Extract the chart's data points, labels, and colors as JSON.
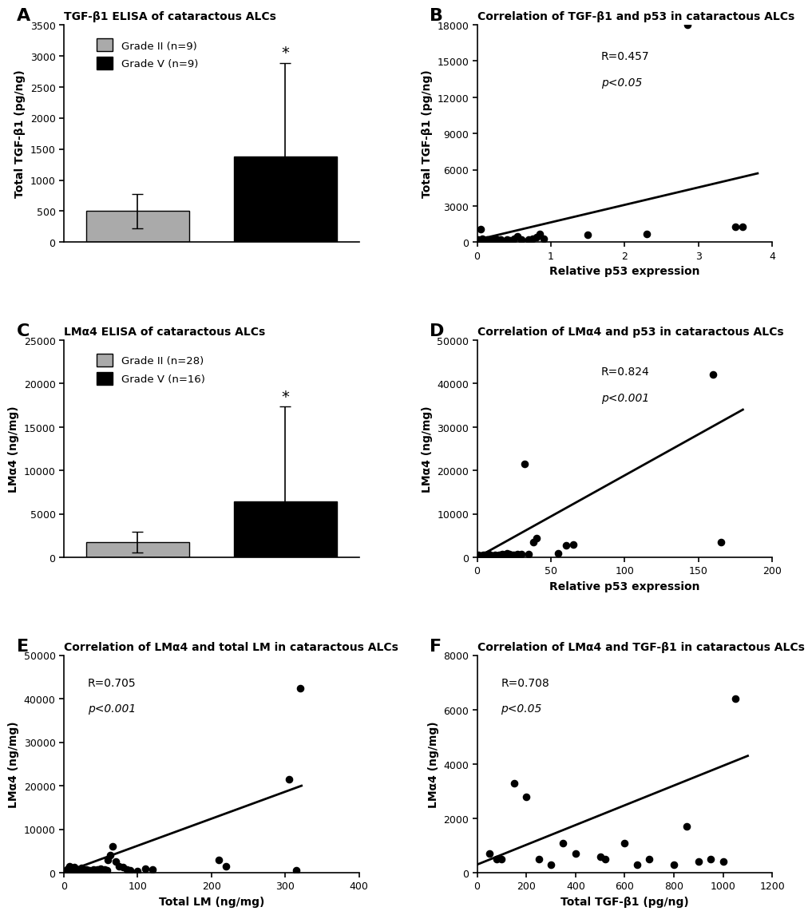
{
  "panel_A": {
    "title": "TGF-β1 ELISA of cataractous ALCs",
    "label": "A",
    "bar_values": [
      500,
      1380
    ],
    "bar_errors": [
      280,
      1500
    ],
    "bar_colors": [
      "#aaaaaa",
      "#000000"
    ],
    "bar_labels": [
      "Grade II (n=9)",
      "Grade V (n=9)"
    ],
    "ylabel": "Total TGF-β1 (pg/ng)",
    "ylim": [
      0,
      3500
    ],
    "yticks": [
      0,
      500,
      1000,
      1500,
      2000,
      2500,
      3000,
      3500
    ],
    "bar_positions": [
      0.25,
      0.75
    ],
    "bar_width": 0.35,
    "xlim": [
      0,
      1.0
    ],
    "significance": "*"
  },
  "panel_B": {
    "title": "Correlation of TGF-β1 and p53 in cataractous ALCs",
    "label": "B",
    "scatter_x": [
      0.02,
      0.05,
      0.07,
      0.09,
      0.1,
      0.12,
      0.13,
      0.15,
      0.17,
      0.18,
      0.2,
      0.22,
      0.25,
      0.28,
      0.3,
      0.32,
      0.35,
      0.4,
      0.45,
      0.5,
      0.55,
      0.6,
      0.7,
      0.75,
      0.8,
      0.85,
      0.9,
      1.5,
      2.3,
      2.85,
      3.5,
      3.6
    ],
    "scatter_y": [
      200,
      1100,
      300,
      150,
      100,
      150,
      200,
      80,
      120,
      60,
      150,
      200,
      300,
      100,
      150,
      200,
      100,
      200,
      180,
      300,
      500,
      250,
      200,
      300,
      400,
      700,
      300,
      600,
      700,
      18000,
      1300,
      1300
    ],
    "line_x": [
      0,
      3.8
    ],
    "line_y": [
      200,
      5700
    ],
    "xlabel": "Relative p53 expression",
    "ylabel": "Total TGF-β1 (pg/ng)",
    "ylim": [
      0,
      18000
    ],
    "xlim": [
      0,
      4
    ],
    "yticks": [
      0,
      3000,
      6000,
      9000,
      12000,
      15000,
      18000
    ],
    "xticks": [
      0,
      1,
      2,
      3,
      4
    ],
    "ann_line1": "R=0.457",
    "ann_line2": "p<0.05",
    "ann_x": 0.42,
    "ann_y1": 0.88,
    "ann_y2": 0.76
  },
  "panel_C": {
    "title": "LMα4 ELISA of cataractous ALCs",
    "label": "C",
    "bar_values": [
      1800,
      6400
    ],
    "bar_errors": [
      1200,
      11000
    ],
    "bar_colors": [
      "#aaaaaa",
      "#000000"
    ],
    "bar_labels": [
      "Grade II (n=28)",
      "Grade V (n=16)"
    ],
    "ylabel": "LMα4 (ng/mg)",
    "ylim": [
      0,
      25000
    ],
    "yticks": [
      0,
      5000,
      10000,
      15000,
      20000,
      25000
    ],
    "bar_positions": [
      0.25,
      0.75
    ],
    "bar_width": 0.35,
    "xlim": [
      0,
      1.0
    ],
    "significance": "*"
  },
  "panel_D": {
    "title": "Correlation of LMα4 and p53 in cataractous ALCs",
    "label": "D",
    "scatter_x": [
      0.5,
      1,
      2,
      3,
      4,
      5,
      6,
      7,
      8,
      9,
      10,
      11,
      12,
      13,
      14,
      15,
      16,
      17,
      18,
      19,
      20,
      22,
      24,
      25,
      27,
      30,
      32,
      35,
      38,
      40,
      55,
      60,
      65,
      160,
      165
    ],
    "scatter_y": [
      200,
      500,
      300,
      400,
      600,
      500,
      400,
      700,
      800,
      600,
      300,
      400,
      500,
      300,
      400,
      500,
      600,
      700,
      600,
      500,
      1000,
      800,
      600,
      500,
      800,
      700,
      21500,
      800,
      3500,
      4500,
      1000,
      2800,
      3000,
      42000,
      3500
    ],
    "line_x": [
      0,
      180
    ],
    "line_y": [
      0,
      34000
    ],
    "xlabel": "Relative p53 expression",
    "ylabel": "LMα4 (ng/mg)",
    "ylim": [
      0,
      50000
    ],
    "xlim": [
      0,
      200
    ],
    "yticks": [
      0,
      10000,
      20000,
      30000,
      40000,
      50000
    ],
    "xticks": [
      0,
      50,
      100,
      150,
      200
    ],
    "ann_line1": "R=0.824",
    "ann_line2": "p<0.001",
    "ann_x": 0.42,
    "ann_y1": 0.88,
    "ann_y2": 0.76
  },
  "panel_E": {
    "title": "Correlation of LMα4 and total LM in cataractous ALCs",
    "label": "E",
    "scatter_x": [
      3,
      5,
      7,
      8,
      10,
      12,
      14,
      15,
      17,
      18,
      20,
      22,
      24,
      25,
      27,
      28,
      30,
      32,
      35,
      37,
      40,
      42,
      45,
      48,
      50,
      55,
      58,
      60,
      63,
      66,
      70,
      75,
      80,
      85,
      90,
      100,
      110,
      120,
      210,
      220,
      305,
      315,
      320
    ],
    "scatter_y": [
      500,
      1000,
      300,
      1500,
      400,
      700,
      1200,
      600,
      500,
      800,
      700,
      600,
      1100,
      800,
      500,
      400,
      700,
      600,
      500,
      300,
      700,
      600,
      800,
      400,
      1000,
      800,
      600,
      3000,
      4000,
      6000,
      2500,
      1500,
      1200,
      800,
      600,
      400,
      1000,
      800,
      3000,
      1500,
      21500,
      500,
      42500
    ],
    "line_x": [
      0,
      322
    ],
    "line_y": [
      0,
      20000
    ],
    "xlabel": "Total LM (ng/mg)",
    "ylabel": "LMα4 (ng/mg)",
    "ylim": [
      0,
      50000
    ],
    "xlim": [
      0,
      400
    ],
    "yticks": [
      0,
      10000,
      20000,
      30000,
      40000,
      50000
    ],
    "xticks": [
      0,
      100,
      200,
      300,
      400
    ],
    "ann_line1": "R=0.705",
    "ann_line2": "p<0.001",
    "ann_x": 0.08,
    "ann_y1": 0.9,
    "ann_y2": 0.78
  },
  "panel_F": {
    "title": "Correlation of LMα4 and TGF-β1 in cataractous ALCs",
    "label": "F",
    "scatter_x": [
      50,
      80,
      100,
      150,
      200,
      250,
      300,
      350,
      400,
      500,
      520,
      600,
      650,
      700,
      800,
      850,
      900,
      950,
      1000,
      1050
    ],
    "scatter_y": [
      700,
      500,
      500,
      3300,
      2800,
      500,
      300,
      1100,
      700,
      600,
      500,
      1100,
      300,
      500,
      300,
      1700,
      400,
      500,
      400,
      6400
    ],
    "line_x": [
      0,
      1100
    ],
    "line_y": [
      300,
      4300
    ],
    "xlabel": "Total TGF-β1 (pg/ng)",
    "ylabel": "LMα4 (ng/mg)",
    "ylim": [
      0,
      8000
    ],
    "xlim": [
      0,
      1200
    ],
    "yticks": [
      0,
      2000,
      4000,
      6000,
      8000
    ],
    "xticks": [
      0,
      200,
      400,
      600,
      800,
      1000,
      1200
    ],
    "ann_line1": "R=0.708",
    "ann_line2": "p<0.05",
    "ann_x": 0.08,
    "ann_y1": 0.9,
    "ann_y2": 0.78
  }
}
